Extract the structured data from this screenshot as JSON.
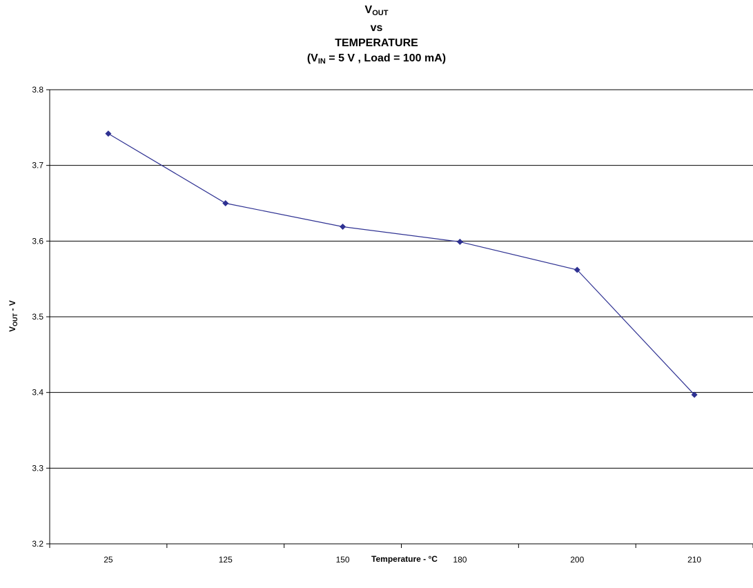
{
  "chart_data": {
    "type": "line",
    "title_lines": {
      "line1_main": "V",
      "line1_sub": "OUT",
      "line2": "vs",
      "line3": "TEMPERATURE",
      "line4_prefix": "(V",
      "line4_sub": "IN",
      "line4_rest": " = 5 V , Load = 100 mA)"
    },
    "xlabel": "Temperature - °C",
    "ylabel_main": "V",
    "ylabel_sub": "OUT",
    "ylabel_rest": " - V",
    "categories": [
      "25",
      "125",
      "150",
      "180",
      "200",
      "210"
    ],
    "series": [
      {
        "values": [
          3.742,
          3.65,
          3.619,
          3.599,
          3.562,
          3.397
        ],
        "color": "#2e3192"
      }
    ],
    "ylim": [
      3.2,
      3.8
    ],
    "yticks": [
      "3.2",
      "3.3",
      "3.4",
      "3.5",
      "3.6",
      "3.7",
      "3.8"
    ],
    "grid": true,
    "legend": false
  }
}
